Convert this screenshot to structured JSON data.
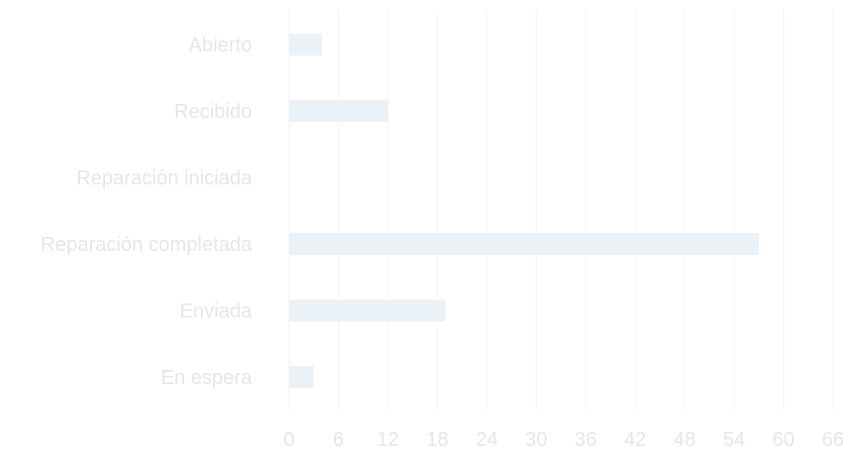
{
  "chart_data": {
    "type": "bar",
    "orientation": "horizontal",
    "title": "",
    "xlabel": "",
    "ylabel": "",
    "categories": [
      "Abierto",
      "Recibido",
      "Reparación iniciada",
      "Reparación completada",
      "Enviada",
      "En espera"
    ],
    "values": [
      4,
      12,
      0,
      57,
      19,
      3
    ],
    "xlim": [
      0,
      66
    ],
    "x_ticks": [
      "0",
      "6",
      "12",
      "18",
      "24",
      "30",
      "36",
      "42",
      "48",
      "54",
      "60",
      "66"
    ],
    "grid": true,
    "bar_color": "#ebf2f7",
    "label_color": "#e6e6e6",
    "grid_color": "#f4f4f4"
  }
}
